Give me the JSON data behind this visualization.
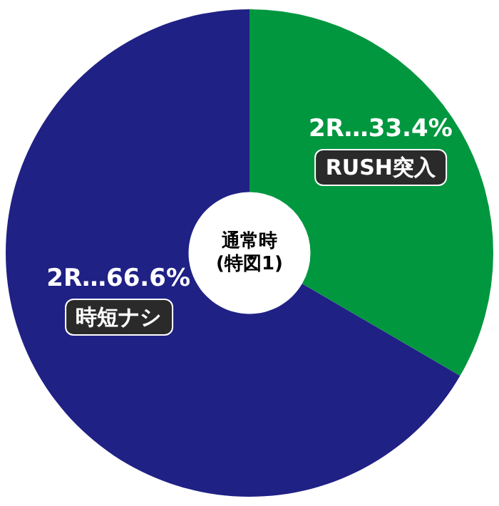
{
  "chart_data": {
    "type": "donut",
    "title": "通常時\n(特図1)",
    "categories": [
      "RUSH突入",
      "時短ナシ"
    ],
    "values": [
      33.4,
      66.6
    ],
    "colors": [
      "#00973f",
      "#1f2185"
    ],
    "value_labels": [
      "2R…33.4%",
      "2R…66.6%"
    ],
    "legend": false
  }
}
